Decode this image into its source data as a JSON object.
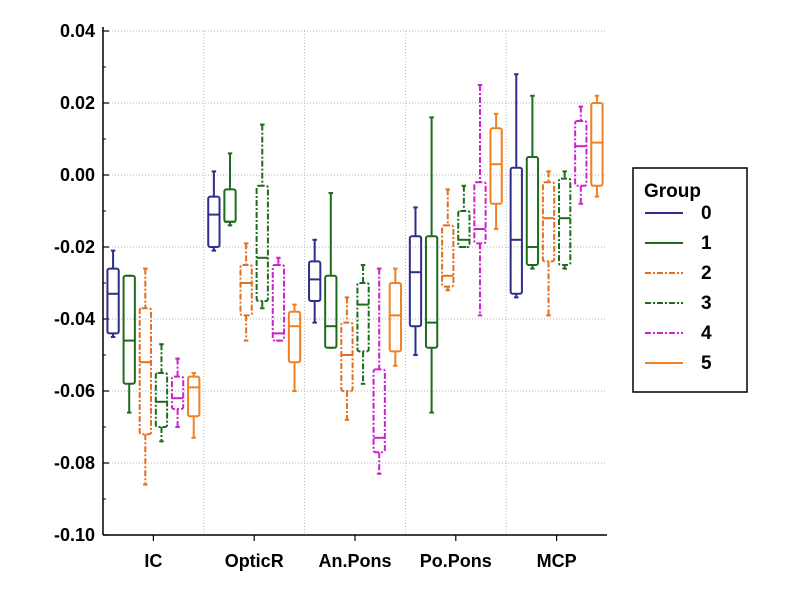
{
  "chart_data": {
    "type": "box",
    "title": "",
    "xlabel": "",
    "ylabel": "",
    "ylim": [
      -0.1,
      0.04
    ],
    "yticks": [
      0.04,
      0.02,
      0.0,
      -0.02,
      -0.04,
      -0.06,
      -0.08,
      -0.1
    ],
    "ytick_labels": [
      "0.04",
      "0.02",
      "0.00",
      "-0.02",
      "-0.04",
      "-0.06",
      "-0.08",
      "-0.10"
    ],
    "grid": "horizontal dotted",
    "categories": [
      "IC",
      "OpticR",
      "An.Pons",
      "Po.Pons",
      "MCP"
    ],
    "legend": {
      "title": "Group",
      "position": "right"
    },
    "series": [
      {
        "name": "0",
        "color": "#2e2e8c",
        "dash": "solid",
        "boxes": [
          {
            "min": -0.045,
            "q1": -0.044,
            "median": -0.033,
            "q3": -0.026,
            "max": -0.021
          },
          {
            "min": -0.021,
            "q1": -0.02,
            "median": -0.011,
            "q3": -0.006,
            "max": 0.001
          },
          {
            "min": -0.041,
            "q1": -0.035,
            "median": -0.029,
            "q3": -0.024,
            "max": -0.018
          },
          {
            "min": -0.05,
            "q1": -0.042,
            "median": -0.027,
            "q3": -0.017,
            "max": -0.009
          },
          {
            "min": -0.034,
            "q1": -0.033,
            "median": -0.018,
            "q3": 0.002,
            "max": 0.028
          }
        ]
      },
      {
        "name": "1",
        "color": "#1e6b1e",
        "dash": "solid",
        "boxes": [
          {
            "min": -0.066,
            "q1": -0.058,
            "median": -0.046,
            "q3": -0.028,
            "max": -0.028
          },
          {
            "min": -0.014,
            "q1": -0.013,
            "median": -0.013,
            "q3": -0.004,
            "max": 0.006
          },
          {
            "min": -0.048,
            "q1": -0.048,
            "median": -0.042,
            "q3": -0.028,
            "max": -0.005
          },
          {
            "min": -0.066,
            "q1": -0.048,
            "median": -0.041,
            "q3": -0.017,
            "max": 0.016
          },
          {
            "min": -0.026,
            "q1": -0.025,
            "median": -0.02,
            "q3": 0.005,
            "max": 0.022
          }
        ]
      },
      {
        "name": "2",
        "color": "#e07020",
        "dash": "dashdot",
        "boxes": [
          {
            "min": -0.086,
            "q1": -0.072,
            "median": -0.052,
            "q3": -0.037,
            "max": -0.026
          },
          {
            "min": -0.046,
            "q1": -0.039,
            "median": -0.03,
            "q3": -0.025,
            "max": -0.019
          },
          {
            "min": -0.068,
            "q1": -0.06,
            "median": -0.05,
            "q3": -0.041,
            "max": -0.034
          },
          {
            "min": -0.032,
            "q1": -0.031,
            "median": -0.028,
            "q3": -0.014,
            "max": -0.004
          },
          {
            "min": -0.039,
            "q1": -0.024,
            "median": -0.012,
            "q3": -0.002,
            "max": 0.001
          }
        ]
      },
      {
        "name": "3",
        "color": "#1e6b1e",
        "dash": "dashdot",
        "boxes": [
          {
            "min": -0.074,
            "q1": -0.07,
            "median": -0.063,
            "q3": -0.055,
            "max": -0.047
          },
          {
            "min": -0.037,
            "q1": -0.035,
            "median": -0.023,
            "q3": -0.003,
            "max": 0.014
          },
          {
            "min": -0.058,
            "q1": -0.049,
            "median": -0.036,
            "q3": -0.03,
            "max": -0.025
          },
          {
            "min": -0.02,
            "q1": -0.02,
            "median": -0.018,
            "q3": -0.01,
            "max": -0.003
          },
          {
            "min": -0.026,
            "q1": -0.025,
            "median": -0.012,
            "q3": -0.001,
            "max": 0.001
          }
        ]
      },
      {
        "name": "4",
        "color": "#cc22cc",
        "dash": "dashdot",
        "boxes": [
          {
            "min": -0.07,
            "q1": -0.065,
            "median": -0.062,
            "q3": -0.056,
            "max": -0.051
          },
          {
            "min": -0.046,
            "q1": -0.046,
            "median": -0.044,
            "q3": -0.025,
            "max": -0.023
          },
          {
            "min": -0.083,
            "q1": -0.077,
            "median": -0.073,
            "q3": -0.054,
            "max": -0.026
          },
          {
            "min": -0.039,
            "q1": -0.019,
            "median": -0.015,
            "q3": -0.002,
            "max": 0.025
          },
          {
            "min": -0.008,
            "q1": -0.003,
            "median": 0.008,
            "q3": 0.015,
            "max": 0.019
          }
        ]
      },
      {
        "name": "5",
        "color": "#f08020",
        "dash": "solid",
        "boxes": [
          {
            "min": -0.073,
            "q1": -0.067,
            "median": -0.059,
            "q3": -0.056,
            "max": -0.055
          },
          {
            "min": -0.06,
            "q1": -0.052,
            "median": -0.042,
            "q3": -0.038,
            "max": -0.036
          },
          {
            "min": -0.053,
            "q1": -0.049,
            "median": -0.039,
            "q3": -0.03,
            "max": -0.026
          },
          {
            "min": -0.015,
            "q1": -0.008,
            "median": 0.003,
            "q3": 0.013,
            "max": 0.017
          },
          {
            "min": -0.006,
            "q1": -0.003,
            "median": 0.009,
            "q3": 0.02,
            "max": 0.022
          }
        ]
      }
    ]
  }
}
